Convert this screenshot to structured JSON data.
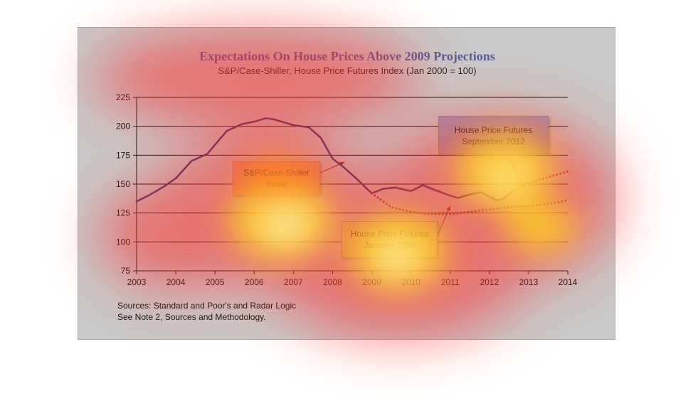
{
  "chart_data": {
    "type": "line",
    "title": "Expectations On House Prices Above 2009 Projections",
    "subtitle": "S&P/Case-Shiller, House Price Futures Index (Jan 2000 = 100)",
    "xlim": [
      2003,
      2014
    ],
    "ylim": [
      75,
      225
    ],
    "x_ticks": [
      2003,
      2004,
      2005,
      2006,
      2007,
      2008,
      2009,
      2010,
      2011,
      2012,
      2013,
      2014
    ],
    "y_ticks": [
      75,
      100,
      125,
      150,
      175,
      200,
      225
    ],
    "grid": true,
    "series": [
      {
        "name": "S&P/Case-Shiller Index",
        "style": "solid",
        "color": "#3b3a6b",
        "x": [
          2003.0,
          2003.3,
          2003.7,
          2004.0,
          2004.4,
          2004.8,
          2005.0,
          2005.3,
          2005.7,
          2006.0,
          2006.3,
          2006.5,
          2006.8,
          2007.0,
          2007.4,
          2007.7,
          2008.0,
          2008.3,
          2008.6,
          2009.0,
          2009.3,
          2009.6,
          2010.0,
          2010.3,
          2010.6,
          2011.0,
          2011.2,
          2011.5,
          2011.8,
          2012.0,
          2012.2,
          2012.4,
          2012.6
        ],
        "y": [
          135,
          140,
          148,
          155,
          170,
          176,
          184,
          196,
          202,
          204,
          207,
          206,
          203,
          201,
          199,
          190,
          172,
          164,
          155,
          142,
          146,
          147,
          144,
          149,
          145,
          140,
          138,
          141,
          143,
          139,
          136,
          138,
          144
        ]
      },
      {
        "name": "House Price Futures September 2012",
        "style": "dotted",
        "color": "#8a3a3a",
        "x": [
          2012.6,
          2013.0,
          2013.5,
          2014.0
        ],
        "y": [
          144,
          151,
          156,
          161
        ]
      },
      {
        "name": "House Price Futures January 2009",
        "style": "dotted",
        "color": "#8a3a3a",
        "x": [
          2009.0,
          2009.5,
          2010.0,
          2010.5,
          2011.0,
          2011.5,
          2012.0,
          2012.5,
          2013.0,
          2013.5,
          2014.0
        ],
        "y": [
          142,
          130,
          126,
          124,
          124,
          126,
          128,
          130,
          131,
          133,
          136
        ]
      }
    ],
    "annotations": [
      {
        "id": "case_shiller",
        "lines": [
          "S&P/Case-Shiller",
          "Index"
        ],
        "fill": "#d6a47a"
      },
      {
        "id": "futures_sep",
        "lines": [
          "House Price Futures",
          "September 2012"
        ],
        "fill": "#9c9bbd"
      },
      {
        "id": "futures_jan",
        "lines": [
          "House Price Futures",
          "January 2009"
        ],
        "fill": "#c8d68f"
      }
    ],
    "sources": [
      "Sources:  Standard and Poor's and Radar Logic",
      "See Note 2, Sources and Methodology."
    ]
  }
}
